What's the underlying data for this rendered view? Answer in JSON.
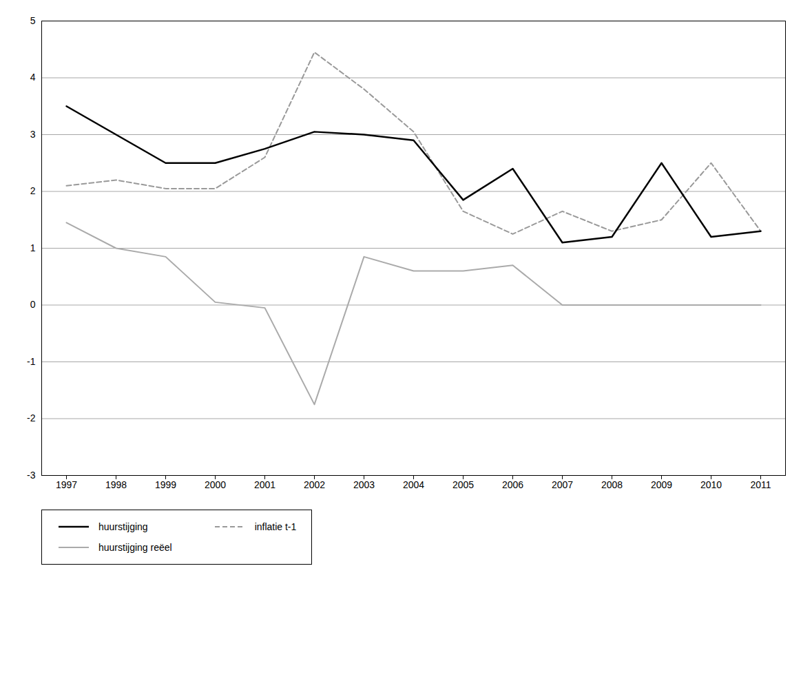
{
  "chart_data": {
    "type": "line",
    "x": [
      1997,
      1998,
      1999,
      2000,
      2001,
      2002,
      2003,
      2004,
      2005,
      2006,
      2007,
      2008,
      2009,
      2010,
      2011
    ],
    "series": [
      {
        "name": "huurstijging",
        "color": "#000000",
        "line_style": "solid",
        "values": [
          3.5,
          3.0,
          2.5,
          2.5,
          2.75,
          3.05,
          3.0,
          2.9,
          1.85,
          2.4,
          1.1,
          1.2,
          2.5,
          1.2,
          1.3
        ]
      },
      {
        "name": "inflatie t-1",
        "color": "#999999",
        "line_style": "dashed",
        "values": [
          2.1,
          2.2,
          2.05,
          2.05,
          2.6,
          4.45,
          3.8,
          3.05,
          1.65,
          1.25,
          1.65,
          1.3,
          1.5,
          2.5,
          1.3
        ]
      },
      {
        "name": "huurstijging reëel",
        "color": "#aaaaaa",
        "line_style": "solid",
        "values": [
          1.45,
          1.0,
          0.85,
          0.05,
          -0.05,
          -1.75,
          0.85,
          0.6,
          0.6,
          0.7,
          0.0,
          0.0,
          0.0,
          0.0,
          0.0
        ]
      }
    ],
    "xlim": [
      1996.5,
      2011.5
    ],
    "xticks": [
      1997,
      1998,
      1999,
      2000,
      2001,
      2002,
      2003,
      2004,
      2005,
      2006,
      2007,
      2008,
      2009,
      2010,
      2011
    ],
    "ylim": [
      -3,
      5
    ],
    "yticks": [
      -3,
      -2,
      -1,
      0,
      1,
      2,
      3,
      4,
      5
    ],
    "grid": true,
    "legend": "bottom"
  }
}
